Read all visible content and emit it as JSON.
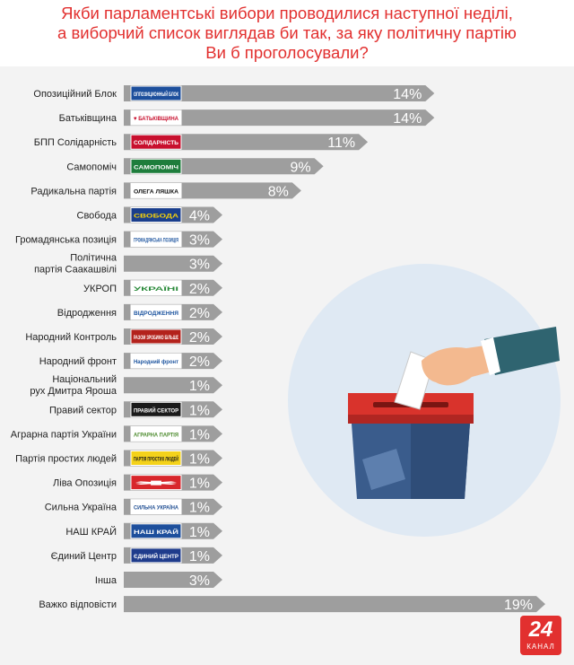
{
  "header": {
    "line1": "Якби парламентські вибори проводилися наступної неділі,",
    "line2": "а виборчий список виглядав би так, за яку політичну партію",
    "line3": "Ви б проголосували?"
  },
  "brand": {
    "number": "24",
    "word": "КАНАЛ"
  },
  "colors": {
    "title": "#e2302f",
    "bar": "#9e9e9e",
    "bar_dark": "#8a8a8a",
    "label": "#222222",
    "accent": "#e2302f",
    "circle": "#dfe9f3",
    "box_lid": "#d9332c",
    "box_body": "#3a5c8c",
    "sleeve": "#2f6470"
  },
  "chart_data": {
    "type": "bar",
    "orientation": "horizontal",
    "unit": "%",
    "xlim": [
      0,
      19
    ],
    "grid": false,
    "legend": "none",
    "categories": [
      "Опозиційний Блок",
      "Батьківщина",
      "БПП Солідарність",
      "Самопоміч",
      "Радикальна партія",
      "Свобода",
      "Громадянська позиція",
      "Політична партія Саакашвілі",
      "УКРОП",
      "Відродження",
      "Народний Контроль",
      "Народний фронт",
      "Національний рух Дмитра Яроша",
      "Правий сектор",
      "Аграрна партія України",
      "Партія простих людей",
      "Ліва Опозиція",
      "Сильна Україна",
      "НАШ КРАЙ",
      "Єдиний Центр",
      "Інша",
      "Важко відповісти"
    ],
    "label_lines": [
      [
        "Опозиційний Блок"
      ],
      [
        "Батьківщина"
      ],
      [
        "БПП Солідарність"
      ],
      [
        "Самопоміч"
      ],
      [
        "Радикальна партія"
      ],
      [
        "Свобода"
      ],
      [
        "Громадянська позиція"
      ],
      [
        "Політична",
        "партія Саакашвілі"
      ],
      [
        "УКРОП"
      ],
      [
        "Відродження"
      ],
      [
        "Народний Контроль"
      ],
      [
        "Народний фронт"
      ],
      [
        "Національний",
        "рух Дмитра Яроша"
      ],
      [
        "Правий сектор"
      ],
      [
        "Аграрна партія України"
      ],
      [
        "Партія простих людей"
      ],
      [
        "Ліва Опозиція"
      ],
      [
        "Сильна Україна"
      ],
      [
        "НАШ КРАЙ"
      ],
      [
        "Єдиний Центр"
      ],
      [
        "Інша"
      ],
      [
        "Важко відповісти"
      ]
    ],
    "values": [
      14,
      14,
      11,
      9,
      8,
      4,
      3,
      3,
      2,
      2,
      2,
      2,
      1,
      1,
      1,
      1,
      1,
      1,
      1,
      1,
      3,
      19
    ],
    "value_labels": [
      "14%",
      "14%",
      "11%",
      "9%",
      "8%",
      "4%",
      "3%",
      "3%",
      "2%",
      "2%",
      "2%",
      "2%",
      "1%",
      "1%",
      "1%",
      "1%",
      "1%",
      "1%",
      "1%",
      "1%",
      "3%",
      "19%"
    ],
    "party_logos": [
      {
        "text": "ОППОЗИЦИОННЫЙ БЛОК",
        "bg": "#1d4f9c",
        "fg": "#ffffff"
      },
      {
        "text": "♥ БАТЬКІВЩИНА",
        "bg": "#ffffff",
        "fg": "#c8102e"
      },
      {
        "text": "СОЛІДАРНІСТЬ",
        "bg": "#c8102e",
        "fg": "#ffffff"
      },
      {
        "text": "САМОПОМІЧ",
        "bg": "#1e7d3c",
        "fg": "#ffffff"
      },
      {
        "text": "ОЛЕГА ЛЯШКА",
        "bg": "#ffffff",
        "fg": "#111111"
      },
      {
        "text": "СВОБОДА",
        "bg": "#1a3e8c",
        "fg": "#f5d10a"
      },
      {
        "text": "ГРОМАДЯНСЬКА ПОЗИЦІЯ",
        "bg": "#ffffff",
        "fg": "#1f56a0"
      },
      null,
      {
        "text": "УКРАЇНІ",
        "bg": "#ffffff",
        "fg": "#2a8a3a"
      },
      {
        "text": "ВІДРОДЖЕННЯ",
        "bg": "#ffffff",
        "fg": "#1f56a0"
      },
      {
        "text": "РАЗОМ ЗРОБИМО БІЛЬШЕ",
        "bg": "#b3221c",
        "fg": "#ffffff"
      },
      {
        "text": "Народний фронт",
        "bg": "#ffffff",
        "fg": "#1f56a0"
      },
      null,
      {
        "text": "ПРАВИЙ СЕКТОР",
        "bg": "#1a1a1a",
        "fg": "#ffffff"
      },
      {
        "text": "АГРАРНА ПАРТІЯ",
        "bg": "#ffffff",
        "fg": "#4b8a2c"
      },
      {
        "text": "ПАРТІЯ ПРОСТИХ ЛЮДЕЙ",
        "bg": "#f4d21a",
        "fg": "#1a1a1a"
      },
      {
        "text": "✱",
        "bg": "#d8262b",
        "fg": "#ffffff"
      },
      {
        "text": "СИЛЬНА УКРАЇНА",
        "bg": "#ffffff",
        "fg": "#1f4e92"
      },
      {
        "text": "НАШ КРАЙ",
        "bg": "#1d4f9c",
        "fg": "#ffffff"
      },
      {
        "text": "ЄДИНИЙ ЦЕНТР",
        "bg": "#1f3c8c",
        "fg": "#ffffff"
      },
      null,
      null
    ]
  }
}
